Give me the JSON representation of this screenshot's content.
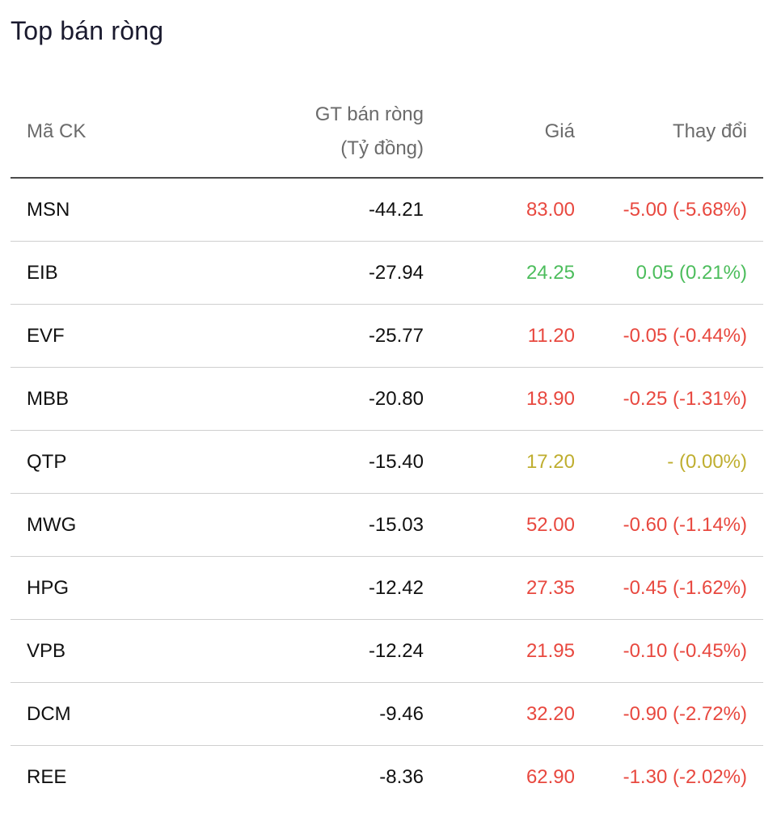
{
  "title": "Top bán ròng",
  "headers": {
    "symbol": "Mã CK",
    "net_value_line1": "GT bán ròng",
    "net_value_line2": "(Tỷ đồng)",
    "price": "Giá",
    "change": "Thay đổi"
  },
  "colors": {
    "down": "#e8483f",
    "up": "#4cbd5c",
    "flat": "#bfae2f"
  },
  "rows": [
    {
      "symbol": "MSN",
      "net_value": "-44.21",
      "price": "83.00",
      "change": "-5.00 (-5.68%)",
      "trend": "down"
    },
    {
      "symbol": "EIB",
      "net_value": "-27.94",
      "price": "24.25",
      "change": "0.05 (0.21%)",
      "trend": "up"
    },
    {
      "symbol": "EVF",
      "net_value": "-25.77",
      "price": "11.20",
      "change": "-0.05 (-0.44%)",
      "trend": "down"
    },
    {
      "symbol": "MBB",
      "net_value": "-20.80",
      "price": "18.90",
      "change": "-0.25 (-1.31%)",
      "trend": "down"
    },
    {
      "symbol": "QTP",
      "net_value": "-15.40",
      "price": "17.20",
      "change": "- (0.00%)",
      "trend": "flat"
    },
    {
      "symbol": "MWG",
      "net_value": "-15.03",
      "price": "52.00",
      "change": "-0.60 (-1.14%)",
      "trend": "down"
    },
    {
      "symbol": "HPG",
      "net_value": "-12.42",
      "price": "27.35",
      "change": "-0.45 (-1.62%)",
      "trend": "down"
    },
    {
      "symbol": "VPB",
      "net_value": "-12.24",
      "price": "21.95",
      "change": "-0.10 (-0.45%)",
      "trend": "down"
    },
    {
      "symbol": "DCM",
      "net_value": "-9.46",
      "price": "32.20",
      "change": "-0.90 (-2.72%)",
      "trend": "down"
    },
    {
      "symbol": "REE",
      "net_value": "-8.36",
      "price": "62.90",
      "change": "-1.30 (-2.02%)",
      "trend": "down"
    }
  ]
}
